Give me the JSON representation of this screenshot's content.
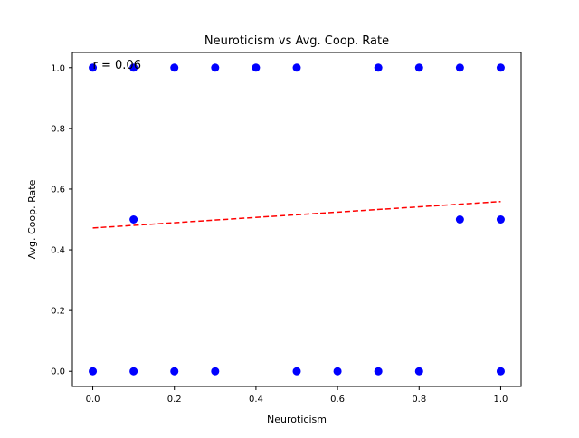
{
  "chart_data": {
    "type": "scatter",
    "title": "Neuroticism vs Avg. Coop. Rate",
    "xlabel": "Neuroticism",
    "ylabel": "Avg. Coop. Rate",
    "xlim": [
      -0.05,
      1.05
    ],
    "ylim": [
      -0.05,
      1.05
    ],
    "xticks": [
      0.0,
      0.2,
      0.4,
      0.6,
      0.8,
      1.0
    ],
    "xtick_labels": [
      "0.0",
      "0.2",
      "0.4",
      "0.6",
      "0.8",
      "1.0"
    ],
    "yticks": [
      0.0,
      0.2,
      0.4,
      0.6,
      0.8,
      1.0
    ],
    "ytick_labels": [
      "0.0",
      "0.2",
      "0.4",
      "0.6",
      "0.8",
      "1.0"
    ],
    "grid": false,
    "point_color": "#0000ff",
    "series": [
      {
        "x": [
          0.0,
          0.1,
          0.2,
          0.3,
          0.4,
          0.5,
          0.7,
          0.8,
          0.9,
          1.0,
          0.1,
          0.9,
          1.0,
          0.0,
          0.1,
          0.2,
          0.3,
          0.5,
          0.6,
          0.7,
          0.8,
          1.0
        ],
        "y": [
          1.0,
          1.0,
          1.0,
          1.0,
          1.0,
          1.0,
          1.0,
          1.0,
          1.0,
          1.0,
          0.5,
          0.5,
          0.5,
          0.0,
          0.0,
          0.0,
          0.0,
          0.0,
          0.0,
          0.0,
          0.0,
          0.0
        ]
      }
    ],
    "trendline": {
      "x": [
        0.0,
        1.0
      ],
      "y": [
        0.472,
        0.559
      ],
      "color": "#ff0000",
      "style": "dashed"
    },
    "annotations": [
      {
        "text": "r = 0.06",
        "x": 0.0,
        "y": 1.0
      }
    ]
  }
}
